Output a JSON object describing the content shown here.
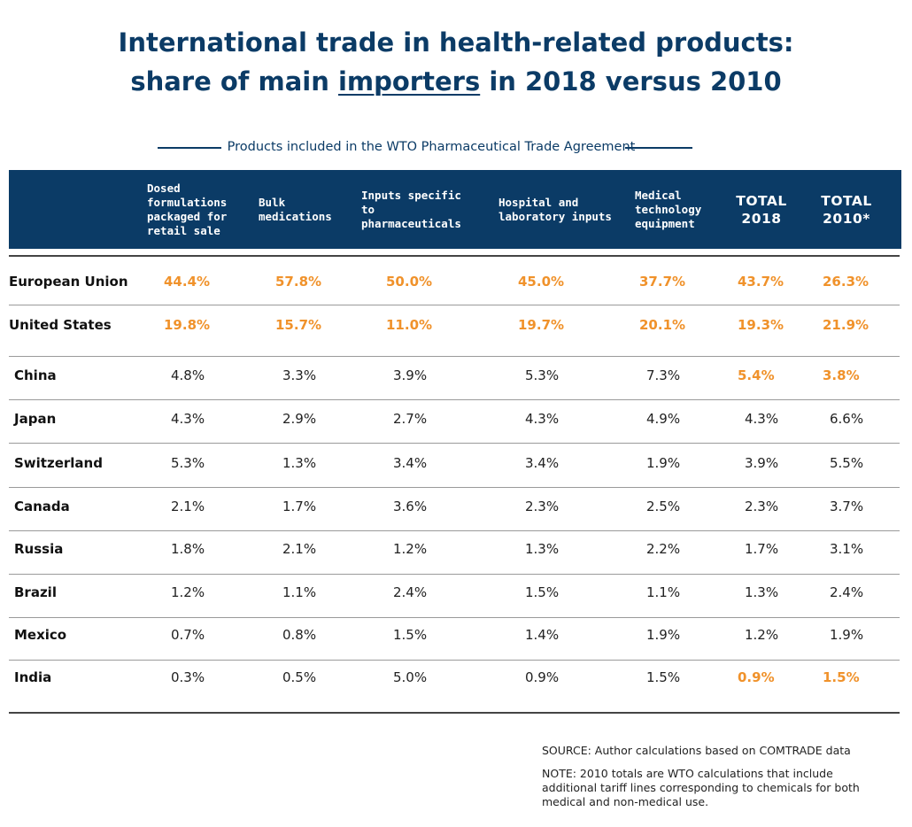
{
  "title": {
    "line1": "International trade in health-related products:",
    "line2_pre": "share of main ",
    "line2_under": "importers",
    "line2_post": " in 2018 versus 2010"
  },
  "wto_label": "Products included in the WTO Pharmaceutical Trade Agreement",
  "colors": {
    "header_bg": "#0b3b66",
    "highlight": "#f0922b",
    "title": "#0b3b66"
  },
  "chart_data": {
    "type": "table",
    "columns": [
      "Dosed formulations packaged for retail sale",
      "Bulk medications",
      "Inputs specific to pharmaceuticals",
      "Hospital and laboratory inputs",
      "Medical technology equipment",
      "TOTAL 2018",
      "TOTAL 2010*"
    ],
    "rows": [
      {
        "country": "European Union",
        "values": [
          "44.4%",
          "57.8%",
          "50.0%",
          "45.0%",
          "37.7%",
          "43.7%",
          "26.3%"
        ],
        "highlight": [
          true,
          true,
          true,
          true,
          true,
          true,
          true
        ]
      },
      {
        "country": "United States",
        "values": [
          "19.8%",
          "15.7%",
          "11.0%",
          "19.7%",
          "20.1%",
          "19.3%",
          "21.9%"
        ],
        "highlight": [
          true,
          true,
          true,
          true,
          true,
          true,
          true
        ]
      },
      {
        "country": "China",
        "values": [
          "4.8%",
          "3.3%",
          "3.9%",
          "5.3%",
          "7.3%",
          "5.4%",
          "3.8%"
        ],
        "highlight": [
          false,
          false,
          false,
          false,
          false,
          true,
          true
        ]
      },
      {
        "country": "Japan",
        "values": [
          "4.3%",
          "2.9%",
          "2.7%",
          "4.3%",
          "4.9%",
          "4.3%",
          "6.6%"
        ],
        "highlight": [
          false,
          false,
          false,
          false,
          false,
          false,
          false
        ]
      },
      {
        "country": "Switzerland",
        "values": [
          "5.3%",
          "1.3%",
          "3.4%",
          "3.4%",
          "1.9%",
          "3.9%",
          "5.5%"
        ],
        "highlight": [
          false,
          false,
          false,
          false,
          false,
          false,
          false
        ]
      },
      {
        "country": "Canada",
        "values": [
          "2.1%",
          "1.7%",
          "3.6%",
          "2.3%",
          "2.5%",
          "2.3%",
          "3.7%"
        ],
        "highlight": [
          false,
          false,
          false,
          false,
          false,
          false,
          false
        ]
      },
      {
        "country": "Russia",
        "values": [
          "1.8%",
          "2.1%",
          "1.2%",
          "1.3%",
          "2.2%",
          "1.7%",
          "3.1%"
        ],
        "highlight": [
          false,
          false,
          false,
          false,
          false,
          false,
          false
        ]
      },
      {
        "country": "Brazil",
        "values": [
          "1.2%",
          "1.1%",
          "2.4%",
          "1.5%",
          "1.1%",
          "1.3%",
          "2.4%"
        ],
        "highlight": [
          false,
          false,
          false,
          false,
          false,
          false,
          false
        ]
      },
      {
        "country": "Mexico",
        "values": [
          "0.7%",
          "0.8%",
          "1.5%",
          "1.4%",
          "1.9%",
          "1.2%",
          "1.9%"
        ],
        "highlight": [
          false,
          false,
          false,
          false,
          false,
          false,
          false
        ]
      },
      {
        "country": "India",
        "values": [
          "0.3%",
          "0.5%",
          "5.0%",
          "0.9%",
          "1.5%",
          "0.9%",
          "1.5%"
        ],
        "highlight": [
          false,
          false,
          false,
          false,
          false,
          true,
          true
        ]
      }
    ]
  },
  "source": "SOURCE: Author calculations based on COMTRADE data",
  "note": "NOTE: 2010 totals are WTO calculations that include additional tariff lines corresponding to chemicals for both medical and non-medical use."
}
